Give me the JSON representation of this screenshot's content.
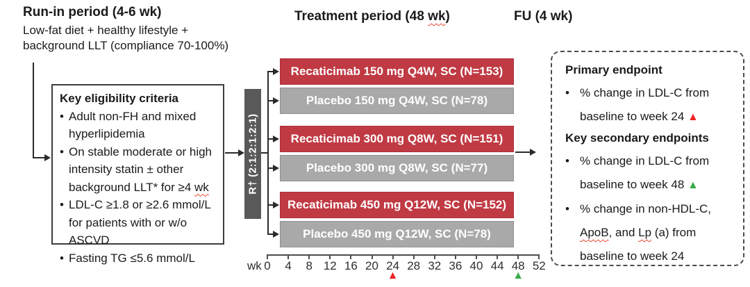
{
  "colors": {
    "active_arm": "#C03A44",
    "active_arm_border": "#A93039",
    "placebo_arm": "#A9A9A9",
    "placebo_arm_border": "#8F8F8F",
    "randomization_bar": "#595959",
    "marker_red": "#EC2424",
    "marker_green": "#3AAB4C",
    "line": "#2B2B2B"
  },
  "bullet_char": "•",
  "header": {
    "runin_title": "Run-in period (4-6 wk)",
    "runin_subtitle": "Low-fat diet + healthy lifestyle + background LLT (compliance 70-100%)",
    "treatment_title_segments": [
      {
        "t": "Treatment period (48 "
      },
      {
        "t": "wk",
        "squiggle": true
      },
      {
        "t": ")"
      }
    ],
    "fu_title": "FU (4 wk)"
  },
  "eligibility": {
    "title": "Key eligibility criteria",
    "bullets": [
      {
        "segments": [
          {
            "t": "Adult non-FH and mixed hyperlipidemia"
          }
        ]
      },
      {
        "segments": [
          {
            "t": "On stable moderate or high intensity statin ± other background LLT* for ≥4 "
          },
          {
            "t": "wk",
            "squiggle": true
          }
        ]
      },
      {
        "segments": [
          {
            "t": "LDL-C ≥1.8 or ≥2.6 mmol/L for patients with or w/o ASCVD"
          }
        ]
      },
      {
        "segments": [
          {
            "t": "Fasting TG ≤5.6 mmol/L"
          }
        ]
      }
    ]
  },
  "randomization": {
    "label": "R† (2:1:2:1:2:1)"
  },
  "arms": [
    {
      "label": "Recaticimab 150 mg Q4W, SC (N=153)",
      "type": "active"
    },
    {
      "label": "Placebo 150 mg Q4W, SC (N=78)",
      "type": "placebo"
    },
    {
      "label": "Recaticimab 300 mg Q8W, SC (N=151)",
      "type": "active"
    },
    {
      "label": "Placebo 300 mg Q8W, SC (N=77)",
      "type": "placebo"
    },
    {
      "label": "Recaticimab 450 mg Q12W, SC (N=152)",
      "type": "active"
    },
    {
      "label": "Placebo 450 mg Q12W, SC (N=78)",
      "type": "placebo"
    }
  ],
  "axis": {
    "unit_label": "wk",
    "tick_weeks": [
      0,
      4,
      8,
      12,
      16,
      20,
      24,
      28,
      32,
      36,
      40,
      44,
      48,
      52
    ],
    "marker_glyph": "▲",
    "markers": [
      {
        "week": 24,
        "color": "red"
      },
      {
        "week": 48,
        "color": "green"
      }
    ]
  },
  "endpoints": {
    "primary_heading": "Primary endpoint",
    "primary_bullets": [
      {
        "segments": [
          {
            "t": "% change in LDL-C from baseline to week 24 "
          },
          {
            "t": "▲",
            "marker": "red"
          }
        ]
      }
    ],
    "secondary_heading": "Key secondary endpoints",
    "secondary_bullets": [
      {
        "segments": [
          {
            "t": "% change in LDL-C from baseline to week 48 "
          },
          {
            "t": "▲",
            "marker": "green"
          }
        ]
      },
      {
        "segments": [
          {
            "t": "% change in non-HDL-C, "
          },
          {
            "t": "ApoB",
            "squiggle": true
          },
          {
            "t": ", and "
          },
          {
            "t": "Lp",
            "squiggle": true
          },
          {
            "t": " (a) from baseline to week 24"
          }
        ]
      }
    ]
  }
}
